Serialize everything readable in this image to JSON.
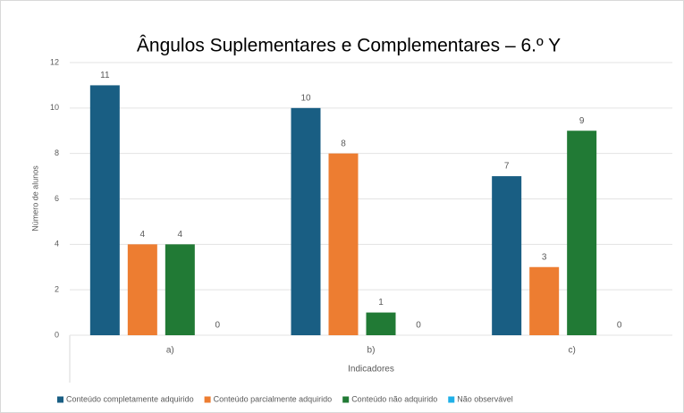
{
  "chart_data": {
    "type": "bar",
    "title": "Ângulos Suplementares e Complementares – 6.º Y",
    "x_label": "Indicadores",
    "y_label": "Número de alunos",
    "categories": [
      "a)",
      "b)",
      "c)"
    ],
    "series": [
      {
        "name": "Conteúdo completamente adquirido",
        "color": "#195e83",
        "values": [
          11,
          10,
          7
        ]
      },
      {
        "name": "Conteúdo parcialmente adquirido",
        "color": "#ed7d31",
        "values": [
          4,
          8,
          3
        ]
      },
      {
        "name": "Conteúdo não adquirido",
        "color": "#217a35",
        "values": [
          4,
          1,
          9
        ]
      },
      {
        "name": "Não observável",
        "color": "#1fb0e8",
        "values": [
          0,
          0,
          0
        ]
      }
    ],
    "ylim": [
      0,
      12
    ],
    "yticks": [
      0,
      2,
      4,
      6,
      8,
      10,
      12
    ],
    "grid": true,
    "legend": "bottom"
  }
}
